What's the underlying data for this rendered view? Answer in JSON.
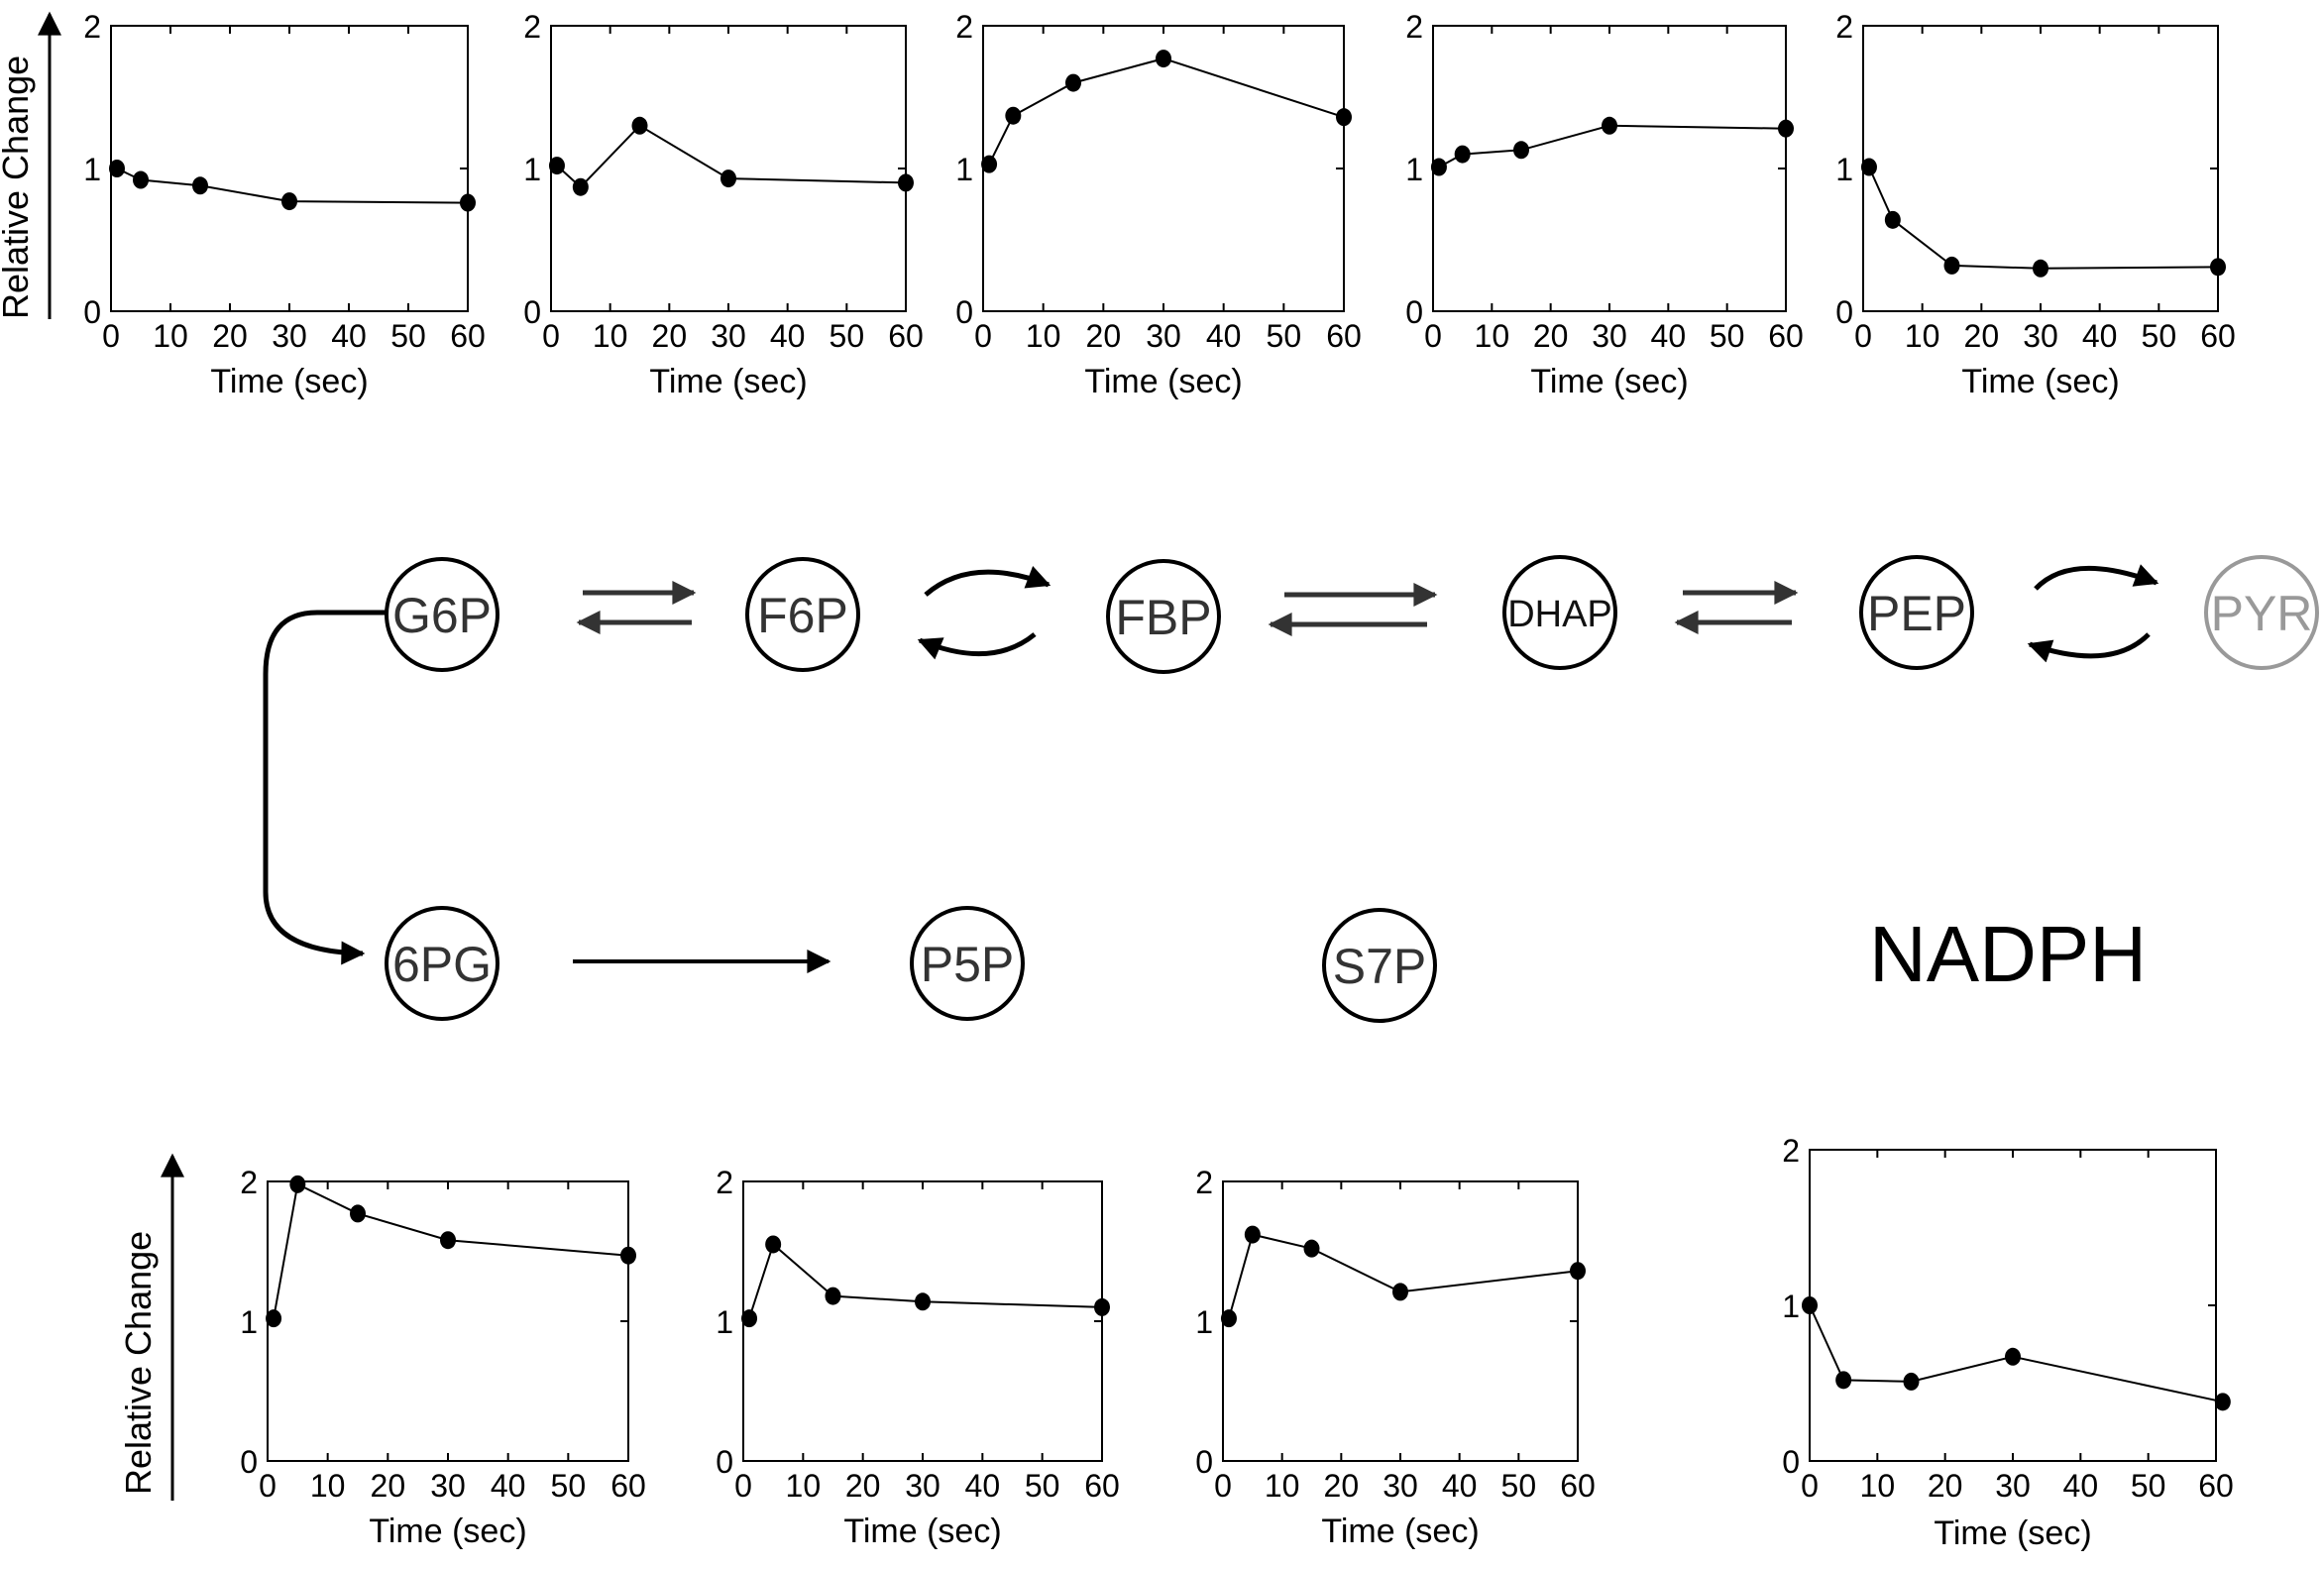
{
  "colors": {
    "ink": "#000000",
    "arrow": "#333333",
    "faded": "#999999"
  },
  "y_axis_label": "Relative Change",
  "nodes": [
    {
      "id": "g6p",
      "label": "G6P"
    },
    {
      "id": "f6p",
      "label": "F6P"
    },
    {
      "id": "fbp",
      "label": "FBP"
    },
    {
      "id": "dhap",
      "label": "DHAP"
    },
    {
      "id": "pep",
      "label": "PEP"
    },
    {
      "id": "pyr",
      "label": "PYR"
    },
    {
      "id": "6pg",
      "label": "6PG"
    },
    {
      "id": "p5p",
      "label": "P5P"
    },
    {
      "id": "s7p",
      "label": "S7P"
    }
  ],
  "nadph_label": "NADPH",
  "chart_data": [
    {
      "type": "line",
      "xlabel": "Time (sec)",
      "ylabel": "Relative Change",
      "xlim": [
        0,
        60
      ],
      "ylim": [
        0,
        2
      ],
      "xticks": [
        0,
        10,
        20,
        30,
        40,
        50,
        60
      ],
      "yticks": [
        0,
        1,
        2
      ],
      "x": [
        1,
        5,
        15,
        30,
        60
      ],
      "values": [
        1.0,
        0.92,
        0.88,
        0.77,
        0.76
      ]
    },
    {
      "type": "line",
      "xlabel": "Time (sec)",
      "ylabel": "",
      "xlim": [
        0,
        60
      ],
      "ylim": [
        0,
        2
      ],
      "xticks": [
        0,
        10,
        20,
        30,
        40,
        50,
        60
      ],
      "yticks": [
        0,
        1,
        2
      ],
      "x": [
        1,
        5,
        15,
        30,
        60
      ],
      "values": [
        1.02,
        0.87,
        1.3,
        0.93,
        0.9
      ]
    },
    {
      "type": "line",
      "xlabel": "Time (sec)",
      "ylabel": "",
      "xlim": [
        0,
        60
      ],
      "ylim": [
        0,
        2
      ],
      "xticks": [
        0,
        10,
        20,
        30,
        40,
        50,
        60
      ],
      "yticks": [
        0,
        1,
        2
      ],
      "x": [
        1,
        5,
        15,
        30,
        60
      ],
      "values": [
        1.03,
        1.37,
        1.6,
        1.77,
        1.36
      ]
    },
    {
      "type": "line",
      "xlabel": "Time (sec)",
      "ylabel": "",
      "xlim": [
        0,
        60
      ],
      "ylim": [
        0,
        2
      ],
      "xticks": [
        0,
        10,
        20,
        30,
        40,
        50,
        60
      ],
      "yticks": [
        0,
        1,
        2
      ],
      "x": [
        1,
        5,
        15,
        30,
        60
      ],
      "values": [
        1.01,
        1.1,
        1.13,
        1.3,
        1.28
      ]
    },
    {
      "type": "line",
      "xlabel": "Time (sec)",
      "ylabel": "",
      "xlim": [
        0,
        60
      ],
      "ylim": [
        0,
        2
      ],
      "xticks": [
        0,
        10,
        20,
        30,
        40,
        50,
        60
      ],
      "yticks": [
        0,
        1,
        2
      ],
      "x": [
        1,
        5,
        15,
        30,
        60
      ],
      "values": [
        1.01,
        0.64,
        0.32,
        0.3,
        0.31
      ]
    },
    {
      "type": "line",
      "xlabel": "Time (sec)",
      "ylabel": "Relative Change",
      "xlim": [
        0,
        60
      ],
      "ylim": [
        0,
        2
      ],
      "xticks": [
        0,
        10,
        20,
        30,
        40,
        50,
        60
      ],
      "yticks": [
        0,
        1,
        2
      ],
      "x": [
        1,
        5,
        15,
        30,
        60
      ],
      "values": [
        1.02,
        1.98,
        1.77,
        1.58,
        1.47
      ]
    },
    {
      "type": "line",
      "xlabel": "Time (sec)",
      "ylabel": "",
      "xlim": [
        0,
        60
      ],
      "ylim": [
        0,
        2
      ],
      "xticks": [
        0,
        10,
        20,
        30,
        40,
        50,
        60
      ],
      "yticks": [
        0,
        1,
        2
      ],
      "x": [
        1,
        5,
        15,
        30,
        60
      ],
      "values": [
        1.02,
        1.55,
        1.18,
        1.14,
        1.1
      ]
    },
    {
      "type": "line",
      "xlabel": "Time (sec)",
      "ylabel": "",
      "xlim": [
        0,
        60
      ],
      "ylim": [
        0,
        2
      ],
      "xticks": [
        0,
        10,
        20,
        30,
        40,
        50,
        60
      ],
      "yticks": [
        0,
        1,
        2
      ],
      "x": [
        1,
        5,
        15,
        30,
        60
      ],
      "values": [
        1.02,
        1.62,
        1.52,
        1.21,
        1.36
      ]
    },
    {
      "type": "line",
      "xlabel": "Time (sec)",
      "ylabel": "",
      "xlim": [
        0,
        60
      ],
      "ylim": [
        0,
        2
      ],
      "xticks": [
        0,
        10,
        20,
        30,
        40,
        50,
        60
      ],
      "yticks": [
        0,
        1,
        2
      ],
      "x": [
        0,
        5,
        15,
        30,
        61
      ],
      "values": [
        1.0,
        0.52,
        0.51,
        0.67,
        0.38
      ]
    }
  ]
}
